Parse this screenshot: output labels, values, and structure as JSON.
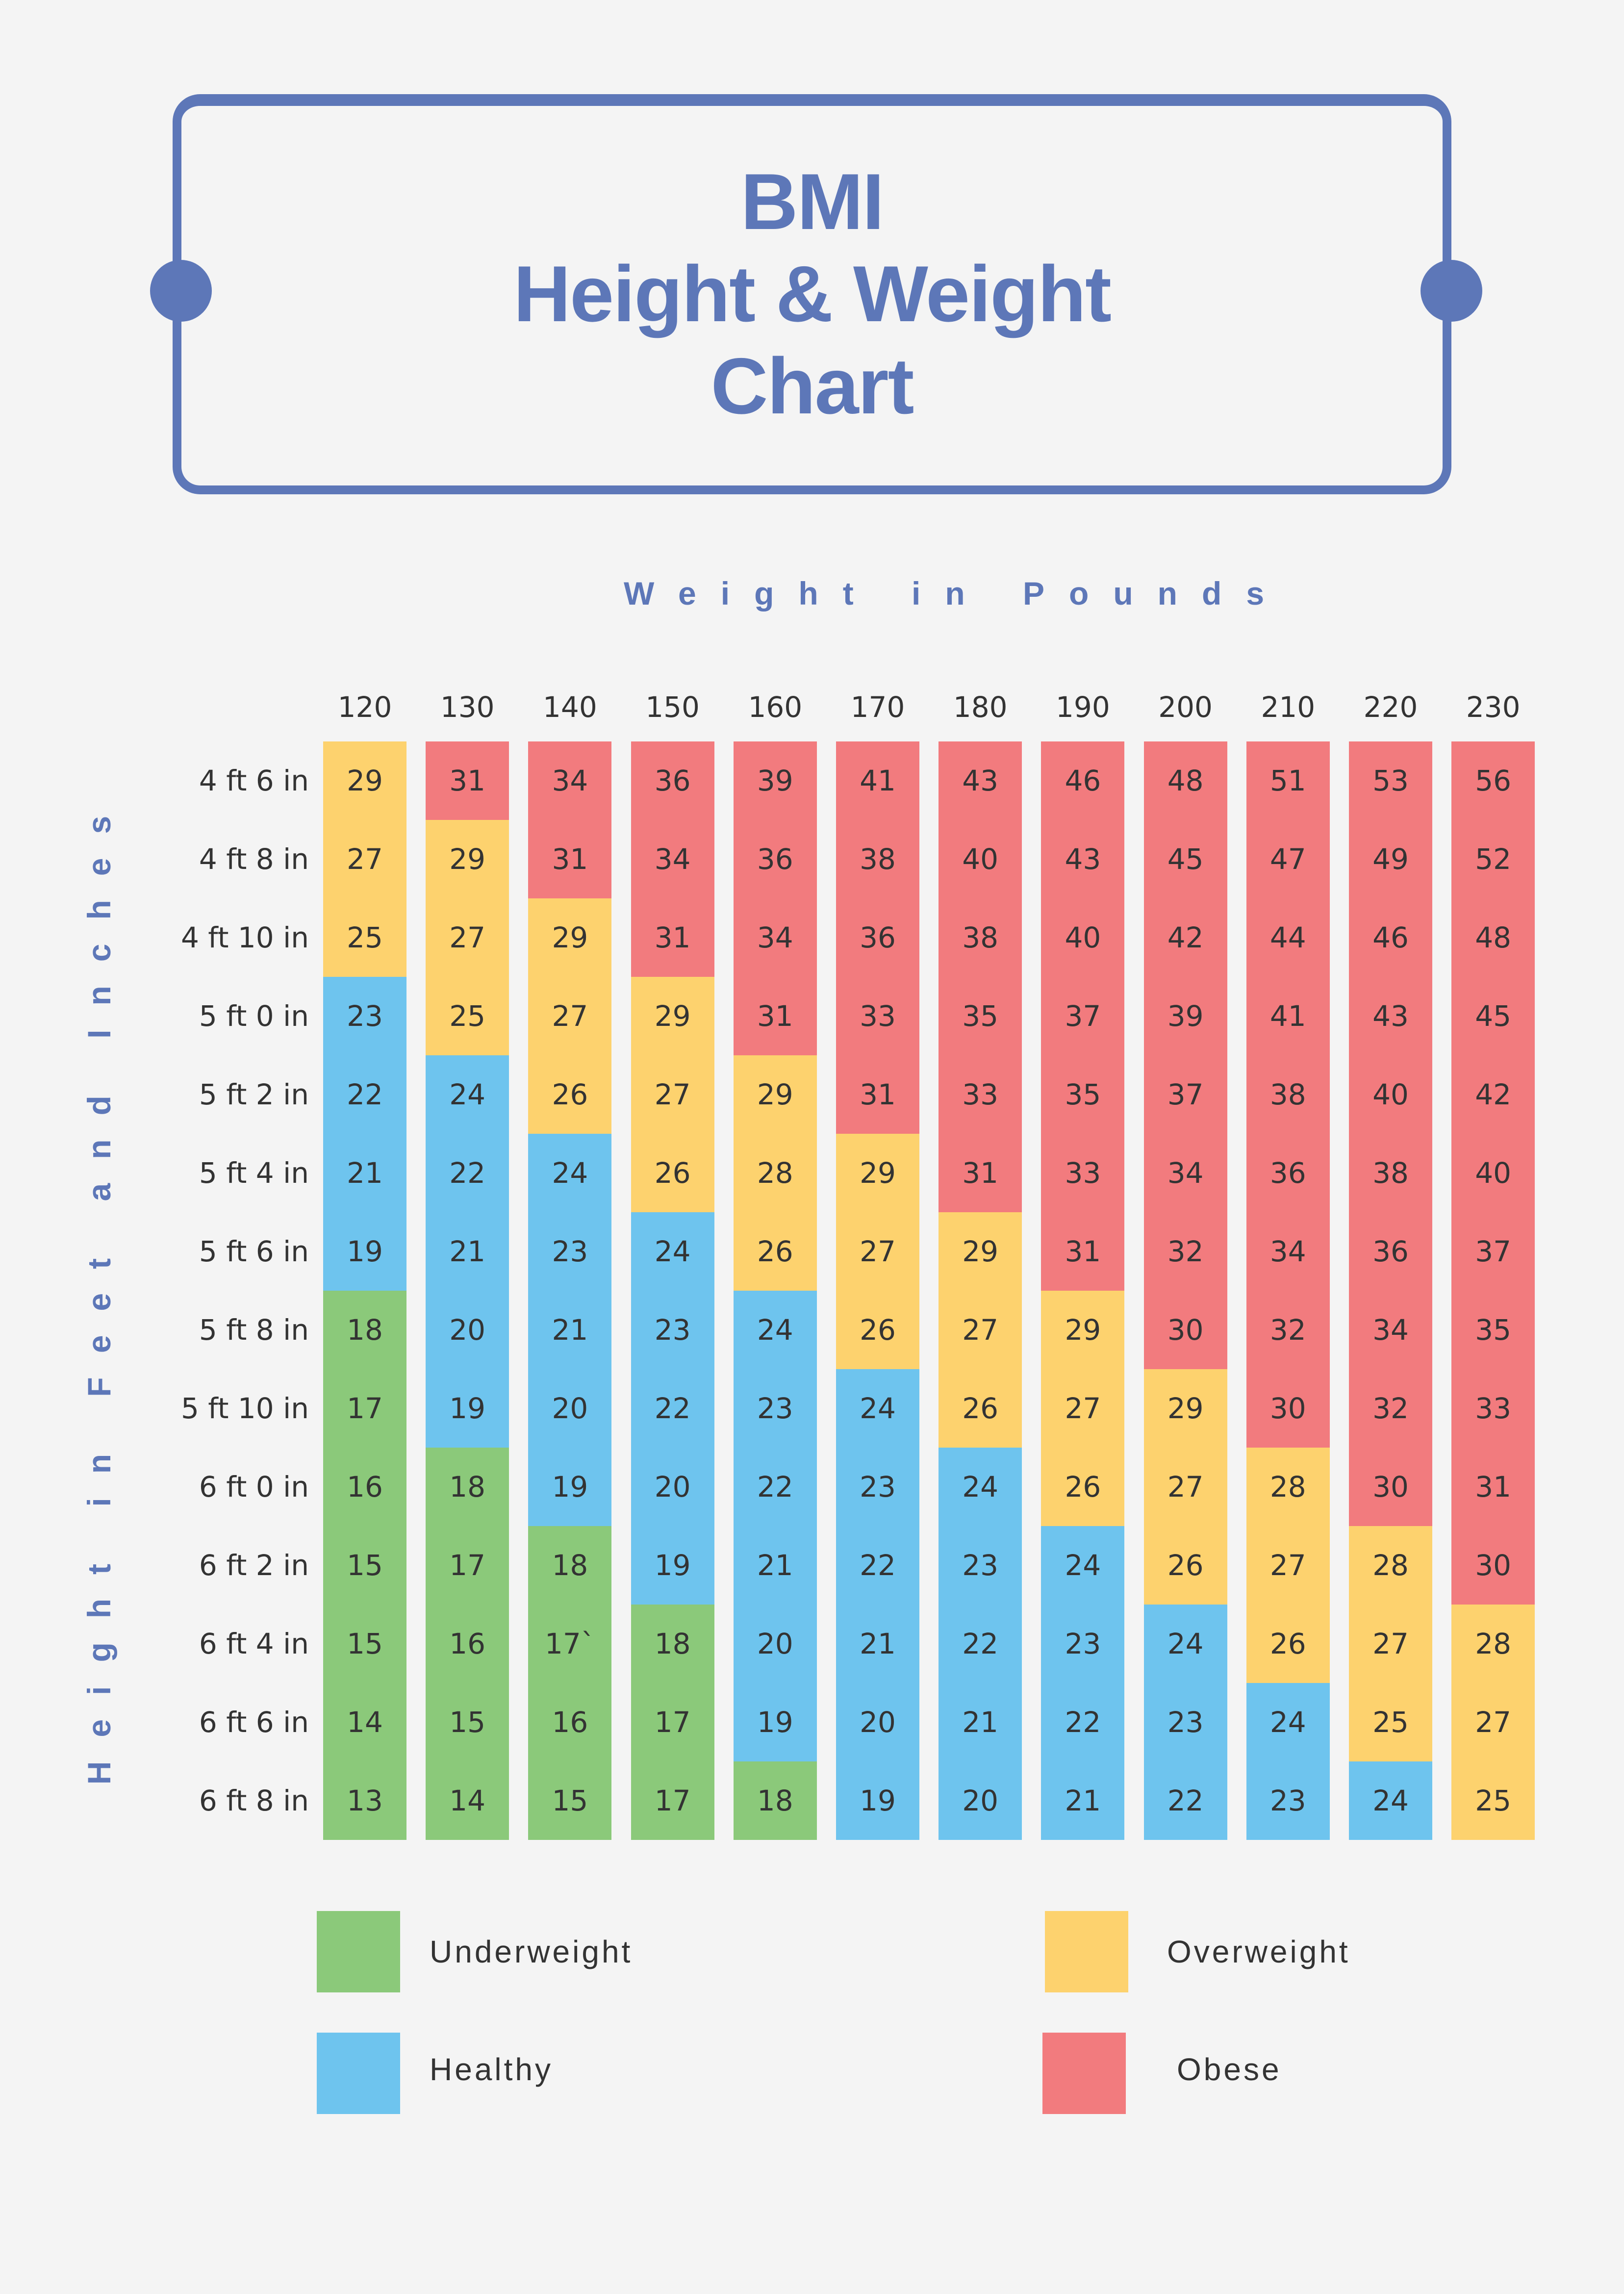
{
  "title": {
    "line1": "BMI",
    "line2": "Height & Weight",
    "line3": "Chart"
  },
  "axes": {
    "x_label": "Weight in Pounds",
    "y_label": "Height in Feet and Inches"
  },
  "colors": {
    "accent": "#5D77B8",
    "background": "#F4F4F4",
    "underweight": "#8BC97A",
    "healthy": "#6EC4EE",
    "overweight": "#FDD26E",
    "obese": "#F27B7E",
    "text": "#333333"
  },
  "legend": [
    {
      "label": "Underweight",
      "category": "underweight",
      "color": "#8BC97A"
    },
    {
      "label": "Healthy",
      "category": "healthy",
      "color": "#6EC4EE"
    },
    {
      "label": "Overweight",
      "category": "overweight",
      "color": "#FDD26E"
    },
    {
      "label": "Obese",
      "category": "obese",
      "color": "#F27B7E"
    }
  ],
  "chart_data": {
    "type": "heatmap",
    "title": "BMI Height & Weight Chart",
    "xlabel": "Weight in Pounds",
    "ylabel": "Height in Feet and Inches",
    "x": [
      "120",
      "130",
      "140",
      "150",
      "160",
      "170",
      "180",
      "190",
      "200",
      "210",
      "220",
      "230"
    ],
    "y": [
      "4 ft 6 in",
      "4 ft 8 in",
      "4 ft 10 in",
      "5 ft 0 in",
      "5 ft 2 in",
      "5 ft 4 in",
      "5 ft 6 in",
      "5 ft 8 in",
      "5 ft 10 in",
      "6 ft 0 in",
      "6 ft 2 in",
      "6 ft 4 in",
      "6 ft 6 in",
      "6 ft 8 in"
    ],
    "legend": [
      "Underweight",
      "Healthy",
      "Overweight",
      "Obese"
    ],
    "legend_position": "bottom",
    "grid": false,
    "columns": [
      {
        "weight": "120",
        "values": [
          "29",
          "27",
          "25",
          "23",
          "22",
          "21",
          "19",
          "18",
          "17",
          "16",
          "15",
          "15",
          "14",
          "13"
        ],
        "categories": [
          "O",
          "O",
          "O",
          "H",
          "H",
          "H",
          "H",
          "U",
          "U",
          "U",
          "U",
          "U",
          "U",
          "U"
        ]
      },
      {
        "weight": "130",
        "values": [
          "31",
          "29",
          "27",
          "25",
          "24",
          "22",
          "21",
          "20",
          "19",
          "18",
          "17",
          "16",
          "15",
          "14"
        ],
        "categories": [
          "B",
          "O",
          "O",
          "O",
          "H",
          "H",
          "H",
          "H",
          "H",
          "U",
          "U",
          "U",
          "U",
          "U"
        ]
      },
      {
        "weight": "140",
        "values": [
          "34",
          "31",
          "29",
          "27",
          "26",
          "24",
          "23",
          "21",
          "20",
          "19",
          "18",
          "17`",
          "16",
          "15"
        ],
        "categories": [
          "B",
          "B",
          "O",
          "O",
          "O",
          "H",
          "H",
          "H",
          "H",
          "H",
          "U",
          "U",
          "U",
          "U"
        ]
      },
      {
        "weight": "150",
        "values": [
          "36",
          "34",
          "31",
          "29",
          "27",
          "26",
          "24",
          "23",
          "22",
          "20",
          "19",
          "18",
          "17",
          "17"
        ],
        "categories": [
          "B",
          "B",
          "B",
          "O",
          "O",
          "O",
          "H",
          "H",
          "H",
          "H",
          "H",
          "U",
          "U",
          "U"
        ]
      },
      {
        "weight": "160",
        "values": [
          "39",
          "36",
          "34",
          "31",
          "29",
          "28",
          "26",
          "24",
          "23",
          "22",
          "21",
          "20",
          "19",
          "18"
        ],
        "categories": [
          "B",
          "B",
          "B",
          "B",
          "O",
          "O",
          "O",
          "H",
          "H",
          "H",
          "H",
          "H",
          "H",
          "U"
        ]
      },
      {
        "weight": "170",
        "values": [
          "41",
          "38",
          "36",
          "33",
          "31",
          "29",
          "27",
          "26",
          "24",
          "23",
          "22",
          "21",
          "20",
          "19"
        ],
        "categories": [
          "B",
          "B",
          "B",
          "B",
          "B",
          "O",
          "O",
          "O",
          "H",
          "H",
          "H",
          "H",
          "H",
          "H"
        ]
      },
      {
        "weight": "180",
        "values": [
          "43",
          "40",
          "38",
          "35",
          "33",
          "31",
          "29",
          "27",
          "26",
          "24",
          "23",
          "22",
          "21",
          "20"
        ],
        "categories": [
          "B",
          "B",
          "B",
          "B",
          "B",
          "B",
          "O",
          "O",
          "O",
          "H",
          "H",
          "H",
          "H",
          "H"
        ]
      },
      {
        "weight": "190",
        "values": [
          "46",
          "43",
          "40",
          "37",
          "35",
          "33",
          "31",
          "29",
          "27",
          "26",
          "24",
          "23",
          "22",
          "21"
        ],
        "categories": [
          "B",
          "B",
          "B",
          "B",
          "B",
          "B",
          "B",
          "O",
          "O",
          "O",
          "H",
          "H",
          "H",
          "H"
        ]
      },
      {
        "weight": "200",
        "values": [
          "48",
          "45",
          "42",
          "39",
          "37",
          "34",
          "32",
          "30",
          "29",
          "27",
          "26",
          "24",
          "23",
          "22"
        ],
        "categories": [
          "B",
          "B",
          "B",
          "B",
          "B",
          "B",
          "B",
          "B",
          "O",
          "O",
          "O",
          "H",
          "H",
          "H"
        ]
      },
      {
        "weight": "210",
        "values": [
          "51",
          "47",
          "44",
          "41",
          "38",
          "36",
          "34",
          "32",
          "30",
          "28",
          "27",
          "26",
          "24",
          "23"
        ],
        "categories": [
          "B",
          "B",
          "B",
          "B",
          "B",
          "B",
          "B",
          "B",
          "B",
          "O",
          "O",
          "O",
          "H",
          "H"
        ]
      },
      {
        "weight": "220",
        "values": [
          "53",
          "49",
          "46",
          "43",
          "40",
          "38",
          "36",
          "34",
          "32",
          "30",
          "28",
          "27",
          "25",
          "24"
        ],
        "categories": [
          "B",
          "B",
          "B",
          "B",
          "B",
          "B",
          "B",
          "B",
          "B",
          "B",
          "O",
          "O",
          "O",
          "H"
        ]
      },
      {
        "weight": "230",
        "values": [
          "56",
          "52",
          "48",
          "45",
          "42",
          "40",
          "37",
          "35",
          "33",
          "31",
          "30",
          "28",
          "27",
          "25"
        ],
        "categories": [
          "B",
          "B",
          "B",
          "B",
          "B",
          "B",
          "B",
          "B",
          "B",
          "B",
          "B",
          "O",
          "O",
          "O"
        ]
      }
    ],
    "category_codes": {
      "U": "underweight",
      "H": "healthy",
      "O": "overweight",
      "B": "obese"
    }
  }
}
